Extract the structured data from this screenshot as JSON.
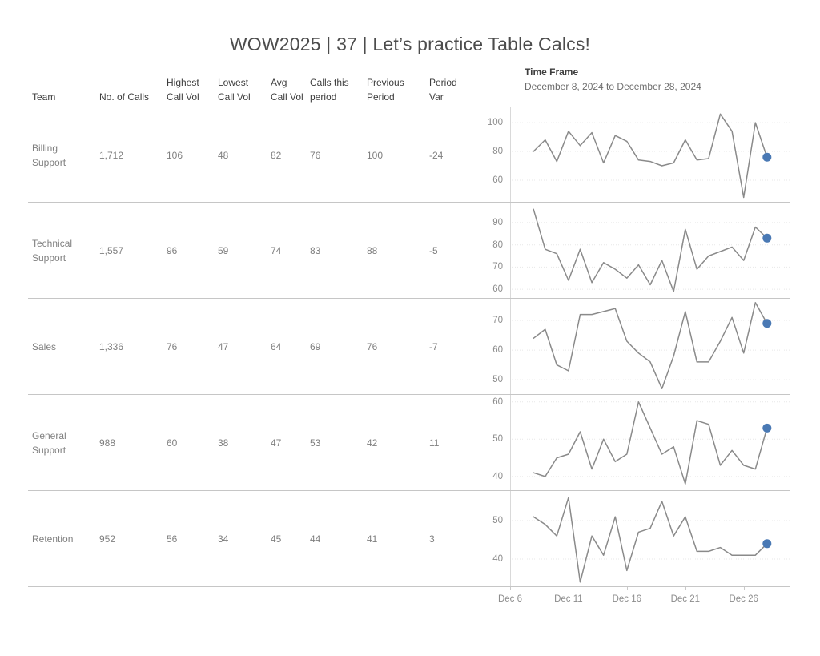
{
  "title": "WOW2025 | 37 | Let’s practice Table Calcs!",
  "time_frame": {
    "label": "Time Frame",
    "value": "December 8, 2024 to December 28, 2024"
  },
  "table": {
    "header_lines": [
      [
        "Team"
      ],
      [
        "No. of Calls"
      ],
      [
        "Highest",
        "Call Vol"
      ],
      [
        "Lowest",
        "Call Vol"
      ],
      [
        "Avg",
        "Call Vol"
      ],
      [
        "Calls this",
        "period"
      ],
      [
        "Previous",
        "Period"
      ],
      [
        "Period",
        "Var"
      ]
    ]
  },
  "chart_data": [
    {
      "type": "table",
      "columns": [
        "Team",
        "No. of Calls",
        "Highest Call Vol",
        "Lowest Call Vol",
        "Avg Call Vol",
        "Calls this period",
        "Previous Period",
        "Period Var"
      ],
      "rows": [
        [
          "Billing Support",
          "1,712",
          106,
          48,
          82,
          76,
          100,
          -24
        ],
        [
          "Technical Support",
          "1,557",
          96,
          59,
          74,
          83,
          88,
          -5
        ],
        [
          "Sales",
          "1,336",
          76,
          47,
          64,
          69,
          76,
          -7
        ],
        [
          "General Support",
          "988",
          60,
          38,
          47,
          53,
          42,
          11
        ],
        [
          "Retention",
          "952",
          56,
          34,
          45,
          44,
          41,
          3
        ]
      ]
    },
    {
      "type": "line",
      "title": "Daily call volume per team, Dec 8 to Dec 28, 2024",
      "x_days": [
        8,
        9,
        10,
        11,
        12,
        13,
        14,
        15,
        16,
        17,
        18,
        19,
        20,
        21,
        22,
        23,
        24,
        25,
        26,
        27,
        28
      ],
      "x_domain_days": [
        6,
        30
      ],
      "x_ticks": [
        {
          "day": 6,
          "label": "Dec 6"
        },
        {
          "day": 11,
          "label": "Dec 11"
        },
        {
          "day": 16,
          "label": "Dec 16"
        },
        {
          "day": 21,
          "label": "Dec 21"
        },
        {
          "day": 26,
          "label": "Dec 26"
        }
      ],
      "legend": "last point of each sparkline marked with a blue dot",
      "styles": {
        "line_color": "#8a8a8a",
        "dot_color": "#4a79b4",
        "grid_color": "#e7e7e7",
        "border_color": "#d9d9d9"
      },
      "series": [
        {
          "name": "Billing Support",
          "y_ticks": [
            100,
            80,
            60
          ],
          "ylim": [
            44.4,
            110.6
          ],
          "values": [
            80,
            88,
            73,
            94,
            84,
            93,
            72,
            91,
            87,
            74,
            73,
            70,
            72,
            88,
            74,
            75,
            106,
            94,
            48,
            100,
            76
          ]
        },
        {
          "name": "Technical Support",
          "y_ticks": [
            90,
            80,
            70,
            60
          ],
          "ylim": [
            55.7,
            99.0
          ],
          "values": [
            96,
            78,
            76,
            64,
            78,
            63,
            72,
            69,
            65,
            71,
            62,
            73,
            59,
            87,
            69,
            75,
            77,
            79,
            73,
            88,
            83
          ]
        },
        {
          "name": "Sales",
          "y_ticks": [
            70,
            60,
            50
          ],
          "ylim": [
            44.9,
            77.3
          ],
          "values": [
            64,
            67,
            55,
            53,
            72,
            72,
            73,
            74,
            63,
            59,
            56,
            47,
            58,
            73,
            56,
            56,
            63,
            71,
            59,
            76,
            69
          ]
        },
        {
          "name": "General Support",
          "y_ticks": [
            60,
            50,
            40
          ],
          "ylim": [
            36.1,
            61.9
          ],
          "values": [
            41,
            40,
            45,
            46,
            52,
            42,
            50,
            44,
            46,
            60,
            53,
            46,
            48,
            38,
            55,
            54,
            43,
            47,
            43,
            42,
            53
          ]
        },
        {
          "name": "Retention",
          "y_ticks": [
            50,
            40
          ],
          "ylim": [
            32.7,
            57.7
          ],
          "values": [
            51,
            49,
            46,
            56,
            34,
            46,
            41,
            51,
            37,
            47,
            48,
            55,
            46,
            51,
            42,
            42,
            43,
            41,
            41,
            41,
            44
          ]
        }
      ]
    }
  ]
}
